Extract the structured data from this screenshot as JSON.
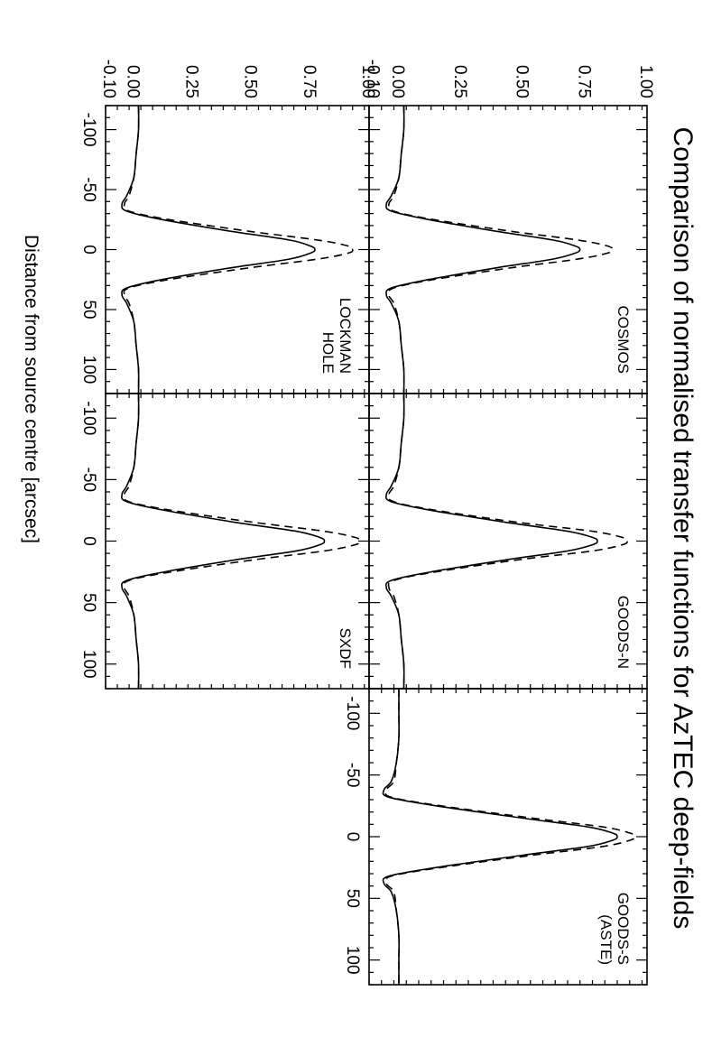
{
  "chart_data": {
    "type": "line",
    "title": "Comparison of normalised transfer functions for AzTEC deep-fields",
    "xlabel": "Distance from source centre [arcsec]",
    "ylabel": "",
    "xlim": [
      -120,
      120
    ],
    "ylim": [
      -0.12,
      1.0
    ],
    "x_ticks": [
      -100,
      -50,
      0,
      50,
      100
    ],
    "y_ticks": [
      -0.1,
      0.0,
      0.25,
      0.5,
      0.75,
      1.0
    ],
    "y_tick_labels": [
      "-0.10",
      "0.00",
      "0.25",
      "0.50",
      "0.75",
      "1.00"
    ],
    "grid": false,
    "line_styles": [
      "solid",
      "dashed"
    ],
    "panels": [
      {
        "label": [
          "COSMOS"
        ],
        "series": [
          {
            "x": [
              -120,
              -100,
              -80,
              -60,
              -45,
              -38,
              -32,
              -25,
              -15,
              -8,
              -3,
              0,
              3,
              8,
              15,
              25,
              32,
              38,
              45,
              60,
              80,
              100,
              120
            ],
            "values": [
              0.02,
              0.02,
              0.01,
              0.0,
              -0.03,
              -0.05,
              -0.03,
              0.12,
              0.4,
              0.62,
              0.71,
              0.73,
              0.71,
              0.62,
              0.4,
              0.12,
              -0.03,
              -0.05,
              -0.03,
              0.0,
              0.01,
              0.02,
              0.02
            ]
          },
          {
            "x": [
              -120,
              -100,
              -80,
              -60,
              -45,
              -38,
              -32,
              -25,
              -15,
              -8,
              -3,
              0,
              3,
              8,
              15,
              25,
              32,
              38,
              45,
              60,
              80,
              100,
              120
            ],
            "values": [
              0.02,
              0.02,
              0.01,
              0.0,
              -0.02,
              -0.04,
              -0.02,
              0.14,
              0.46,
              0.72,
              0.84,
              0.86,
              0.84,
              0.72,
              0.46,
              0.14,
              -0.02,
              -0.04,
              -0.02,
              0.0,
              0.01,
              0.02,
              0.02
            ]
          }
        ]
      },
      {
        "label": [
          "GOODS-N"
        ],
        "series": [
          {
            "x": [
              -120,
              -100,
              -80,
              -60,
              -45,
              -38,
              -32,
              -25,
              -15,
              -8,
              -3,
              0,
              3,
              8,
              15,
              25,
              32,
              38,
              45,
              60,
              80,
              100,
              120
            ],
            "values": [
              0.02,
              0.02,
              0.01,
              0.0,
              -0.03,
              -0.05,
              -0.03,
              0.13,
              0.44,
              0.68,
              0.78,
              0.8,
              0.78,
              0.68,
              0.44,
              0.13,
              -0.03,
              -0.05,
              -0.03,
              0.0,
              0.01,
              0.02,
              0.02
            ]
          },
          {
            "x": [
              -120,
              -100,
              -80,
              -60,
              -45,
              -38,
              -32,
              -25,
              -15,
              -8,
              -3,
              0,
              3,
              8,
              15,
              25,
              32,
              38,
              45,
              60,
              80,
              100,
              120
            ],
            "values": [
              0.02,
              0.02,
              0.01,
              0.0,
              -0.02,
              -0.04,
              -0.02,
              0.15,
              0.49,
              0.78,
              0.9,
              0.92,
              0.9,
              0.78,
              0.49,
              0.15,
              -0.02,
              -0.04,
              -0.02,
              0.0,
              0.01,
              0.02,
              0.02
            ]
          }
        ]
      },
      {
        "label": [
          "GOODS-S",
          "(ASTE)"
        ],
        "series": [
          {
            "x": [
              -120,
              -100,
              -80,
              -60,
              -45,
              -38,
              -32,
              -25,
              -15,
              -8,
              -3,
              0,
              3,
              8,
              15,
              25,
              32,
              38,
              45,
              60,
              80,
              100,
              120
            ],
            "values": [
              0.0,
              0.0,
              0.0,
              -0.01,
              -0.03,
              -0.06,
              -0.04,
              0.15,
              0.5,
              0.76,
              0.86,
              0.88,
              0.86,
              0.76,
              0.5,
              0.15,
              -0.04,
              -0.06,
              -0.03,
              -0.01,
              0.0,
              0.0,
              0.0
            ]
          },
          {
            "x": [
              -120,
              -100,
              -80,
              -60,
              -45,
              -38,
              -32,
              -25,
              -15,
              -8,
              -3,
              0,
              3,
              8,
              15,
              25,
              32,
              38,
              45,
              60,
              80,
              100,
              120
            ],
            "values": [
              0.0,
              0.0,
              0.0,
              -0.01,
              -0.02,
              -0.05,
              -0.03,
              0.17,
              0.54,
              0.82,
              0.93,
              0.95,
              0.93,
              0.82,
              0.54,
              0.17,
              -0.03,
              -0.05,
              -0.02,
              -0.01,
              0.0,
              0.0,
              0.0
            ]
          }
        ]
      },
      {
        "label": [
          "LOCKMAN",
          "HOLE"
        ],
        "series": [
          {
            "x": [
              -120,
              -100,
              -80,
              -60,
              -45,
              -38,
              -32,
              -25,
              -15,
              -8,
              -3,
              0,
              3,
              8,
              15,
              25,
              32,
              38,
              45,
              60,
              80,
              100,
              120
            ],
            "values": [
              0.02,
              0.02,
              0.01,
              0.0,
              -0.03,
              -0.05,
              -0.03,
              0.12,
              0.42,
              0.66,
              0.75,
              0.77,
              0.75,
              0.66,
              0.42,
              0.12,
              -0.03,
              -0.05,
              -0.03,
              0.0,
              0.01,
              0.02,
              0.02
            ]
          },
          {
            "x": [
              -120,
              -100,
              -80,
              -60,
              -45,
              -38,
              -32,
              -25,
              -15,
              -8,
              -3,
              0,
              3,
              8,
              15,
              25,
              32,
              38,
              45,
              60,
              80,
              100,
              120
            ],
            "values": [
              0.02,
              0.02,
              0.01,
              0.0,
              -0.02,
              -0.04,
              -0.02,
              0.15,
              0.5,
              0.78,
              0.91,
              0.93,
              0.91,
              0.78,
              0.5,
              0.15,
              -0.02,
              -0.04,
              -0.02,
              0.0,
              0.01,
              0.02,
              0.02
            ]
          }
        ]
      },
      {
        "label": [
          "SXDF"
        ],
        "series": [
          {
            "x": [
              -120,
              -100,
              -80,
              -60,
              -45,
              -38,
              -32,
              -25,
              -15,
              -8,
              -3,
              0,
              3,
              8,
              15,
              25,
              32,
              38,
              45,
              60,
              80,
              100,
              120
            ],
            "values": [
              0.02,
              0.02,
              0.01,
              0.0,
              -0.03,
              -0.05,
              -0.03,
              0.13,
              0.44,
              0.69,
              0.79,
              0.81,
              0.79,
              0.69,
              0.44,
              0.13,
              -0.03,
              -0.05,
              -0.03,
              0.0,
              0.01,
              0.02,
              0.02
            ]
          },
          {
            "x": [
              -120,
              -100,
              -80,
              -60,
              -45,
              -38,
              -32,
              -25,
              -15,
              -8,
              -3,
              0,
              3,
              8,
              15,
              25,
              32,
              38,
              45,
              60,
              80,
              100,
              120
            ],
            "values": [
              0.02,
              0.02,
              0.01,
              0.0,
              -0.02,
              -0.04,
              -0.02,
              0.16,
              0.52,
              0.81,
              0.94,
              0.96,
              0.94,
              0.81,
              0.52,
              0.16,
              -0.02,
              -0.04,
              -0.02,
              0.0,
              0.01,
              0.02,
              0.02
            ]
          }
        ]
      }
    ]
  }
}
